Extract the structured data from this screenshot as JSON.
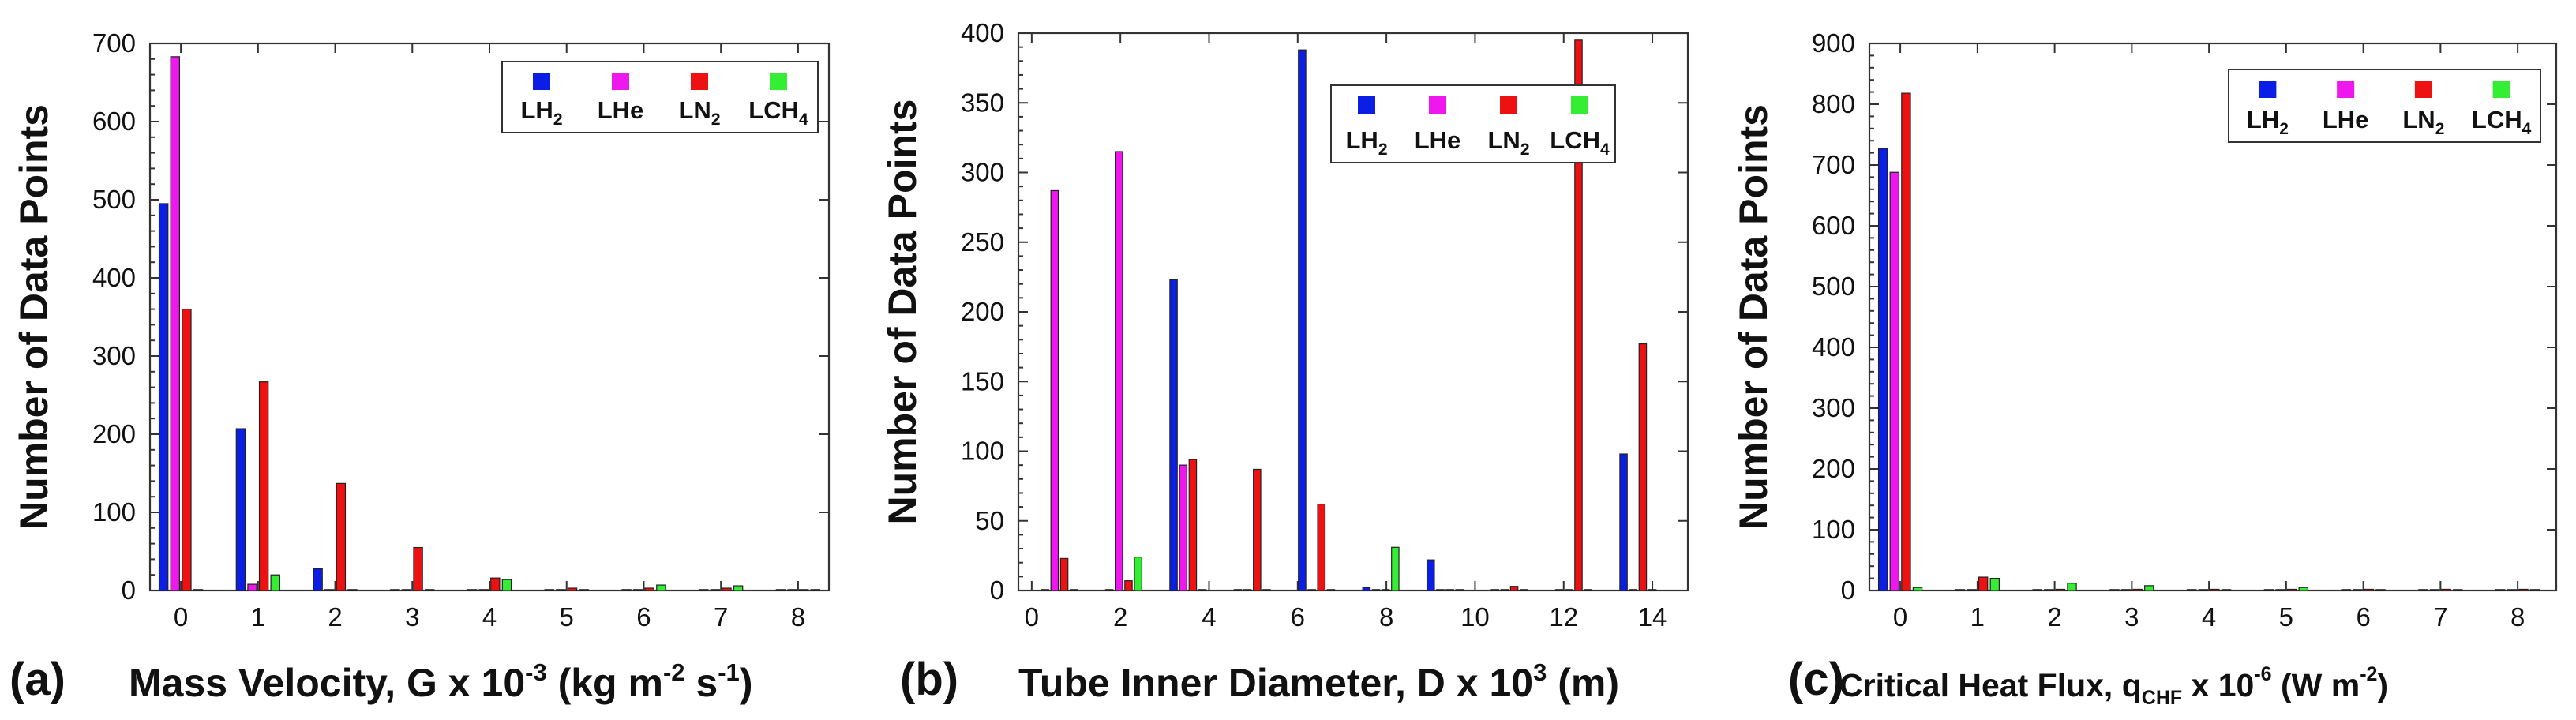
{
  "colors": {
    "LH2": "#0a1ee6",
    "LHe": "#ee18ee",
    "LN2": "#ee1111",
    "LCH4": "#33ee33"
  },
  "chart_data": [
    {
      "type": "bar",
      "panel_label": "(a)",
      "xlabel": {
        "main": "Mass Velocity, G x 10",
        "sup1": "-3",
        "mid": " (kg m",
        "sup2": "-2",
        "mid2": " s",
        "sup3": "-1",
        "end": ")"
      },
      "ylabel": "Number of Data Points",
      "xlim": [
        -0.4,
        8.4
      ],
      "ylim": [
        0,
        700
      ],
      "xticks": [
        0,
        1,
        2,
        3,
        4,
        5,
        6,
        7,
        8
      ],
      "yticks": [
        0,
        100,
        200,
        300,
        400,
        500,
        600,
        700
      ],
      "legend": {
        "position": "top-right",
        "entries": [
          {
            "key": "LH2",
            "base": "LH",
            "sub": "2"
          },
          {
            "key": "LHe",
            "base": "LHe",
            "sub": ""
          },
          {
            "key": "LN2",
            "base": "LN",
            "sub": "2"
          },
          {
            "key": "LCH4",
            "base": "LCH",
            "sub": "4"
          }
        ]
      },
      "bin_width": 1,
      "bin_start": -0.5,
      "series": [
        {
          "key": "LH2",
          "values": [
            495,
            207,
            28,
            0,
            0,
            0,
            0,
            0,
            0
          ]
        },
        {
          "key": "LHe",
          "values": [
            683,
            8,
            0,
            0,
            0,
            0,
            0,
            0,
            0
          ]
        },
        {
          "key": "LN2",
          "values": [
            360,
            267,
            137,
            55,
            16,
            3,
            3,
            3,
            1
          ]
        },
        {
          "key": "LCH4",
          "values": [
            0,
            20,
            0,
            0,
            14,
            0,
            7,
            6,
            0
          ]
        }
      ]
    },
    {
      "type": "bar",
      "panel_label": "(b)",
      "xlabel": {
        "main": "Tube Inner Diameter, D x 10",
        "sup1": "3",
        "mid": " (m)",
        "sup2": "",
        "mid2": "",
        "sup3": "",
        "end": ""
      },
      "ylabel": "Number of Data Points",
      "xlim": [
        -0.3,
        14.8
      ],
      "ylim": [
        0,
        400
      ],
      "xticks": [
        0,
        2,
        4,
        6,
        8,
        10,
        12,
        14
      ],
      "yticks": [
        0,
        50,
        100,
        150,
        200,
        250,
        300,
        350,
        400
      ],
      "legend": {
        "position": "top-right",
        "entries": [
          {
            "key": "LH2",
            "base": "LH",
            "sub": "2"
          },
          {
            "key": "LHe",
            "base": "LHe",
            "sub": ""
          },
          {
            "key": "LN2",
            "base": "LN",
            "sub": "2"
          },
          {
            "key": "LCH4",
            "base": "LCH",
            "sub": "4"
          }
        ]
      },
      "bin_width": 1.45,
      "bin_start": -0.1,
      "series": [
        {
          "key": "LH2",
          "values": [
            0,
            0,
            223,
            0,
            388,
            2,
            22,
            0,
            0,
            98
          ]
        },
        {
          "key": "LHe",
          "values": [
            287,
            315,
            90,
            0,
            0,
            0,
            0,
            0,
            0,
            0
          ]
        },
        {
          "key": "LN2",
          "values": [
            23,
            7,
            94,
            87,
            62,
            0,
            0,
            3,
            395,
            177
          ]
        },
        {
          "key": "LCH4",
          "values": [
            0,
            24,
            0,
            0,
            0,
            31,
            0,
            0,
            0,
            0
          ]
        }
      ]
    },
    {
      "type": "bar",
      "panel_label": "(c)",
      "xlabel": {
        "main": "Critical Heat Flux, q",
        "sub": "CHF",
        "mid": " x 10",
        "sup1": "-6",
        "mid2": " (W m",
        "sup2": "-2",
        "end": ")"
      },
      "ylabel": "Number of Data Points",
      "xlim": [
        -0.4,
        8.5
      ],
      "ylim": [
        0,
        900
      ],
      "xticks": [
        0,
        1,
        2,
        3,
        4,
        5,
        6,
        7,
        8
      ],
      "yticks": [
        0,
        100,
        200,
        300,
        400,
        500,
        600,
        700,
        800,
        900
      ],
      "legend": {
        "position": "top-right",
        "entries": [
          {
            "key": "LH2",
            "base": "LH",
            "sub": "2"
          },
          {
            "key": "LHe",
            "base": "LHe",
            "sub": ""
          },
          {
            "key": "LN2",
            "base": "LN",
            "sub": "2"
          },
          {
            "key": "LCH4",
            "base": "LCH",
            "sub": "4"
          }
        ]
      },
      "bin_width": 1,
      "bin_start": -0.5,
      "series": [
        {
          "key": "LH2",
          "values": [
            727,
            0,
            0,
            0,
            0,
            0,
            0,
            0,
            0
          ]
        },
        {
          "key": "LHe",
          "values": [
            688,
            0,
            0,
            0,
            0,
            0,
            0,
            0,
            0
          ]
        },
        {
          "key": "LN2",
          "values": [
            818,
            22,
            2,
            2,
            2,
            2,
            2,
            2,
            2
          ]
        },
        {
          "key": "LCH4",
          "values": [
            5,
            20,
            12,
            8,
            0,
            5,
            0,
            0,
            0
          ]
        }
      ]
    }
  ]
}
